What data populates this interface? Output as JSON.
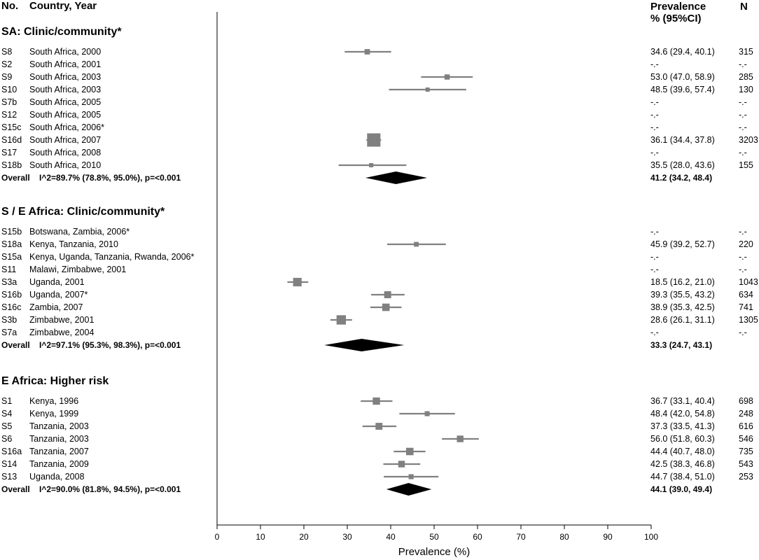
{
  "headers": {
    "no": "No.",
    "country_year": "Country, Year",
    "prevalence_line1": "Prevalence",
    "prevalence_line2": "% (95%CI)",
    "n": "N"
  },
  "chart_data": {
    "type": "forest",
    "xlabel": "Prevalence (%)",
    "xlim": [
      0,
      100
    ],
    "xticks": [
      0,
      10,
      20,
      30,
      40,
      50,
      60,
      70,
      80,
      90,
      100
    ],
    "marker_color": "#808080",
    "summary_color": "#000000",
    "groups": [
      {
        "title": "SA: Clinic/community*",
        "studies": [
          {
            "id": "S8",
            "label": "South Africa, 2000",
            "est": 34.6,
            "lo": 29.4,
            "hi": 40.1,
            "text": "34.6 (29.4, 40.1)",
            "n": "315",
            "weight": 315
          },
          {
            "id": "S2",
            "label": "South Africa, 2001",
            "est": null,
            "lo": null,
            "hi": null,
            "text": "-.-",
            "n": "-.-",
            "weight": null
          },
          {
            "id": "S9",
            "label": "South Africa, 2003",
            "est": 53.0,
            "lo": 47.0,
            "hi": 58.9,
            "text": "53.0 (47.0, 58.9)",
            "n": "285",
            "weight": 285
          },
          {
            "id": "S10",
            "label": "South Africa, 2003",
            "est": 48.5,
            "lo": 39.6,
            "hi": 57.4,
            "text": "48.5 (39.6, 57.4)",
            "n": "130",
            "weight": 130
          },
          {
            "id": "S7b",
            "label": "South Africa, 2005",
            "est": null,
            "lo": null,
            "hi": null,
            "text": "-.-",
            "n": "-.-",
            "weight": null
          },
          {
            "id": "S12",
            "label": "South Africa, 2005",
            "est": null,
            "lo": null,
            "hi": null,
            "text": "-.-",
            "n": "-.-",
            "weight": null
          },
          {
            "id": "S15c",
            "label": "South Africa, 2006*",
            "est": null,
            "lo": null,
            "hi": null,
            "text": "-.-",
            "n": "-.-",
            "weight": null
          },
          {
            "id": "S16d",
            "label": "South Africa, 2007",
            "est": 36.1,
            "lo": 34.4,
            "hi": 37.8,
            "text": "36.1 (34.4, 37.8)",
            "n": "3203",
            "weight": 3203
          },
          {
            "id": "S17",
            "label": "South Africa, 2008",
            "est": null,
            "lo": null,
            "hi": null,
            "text": "-.-",
            "n": "-.-",
            "weight": null
          },
          {
            "id": "S18b",
            "label": "South Africa, 2010",
            "est": 35.5,
            "lo": 28.0,
            "hi": 43.6,
            "text": "35.5 (28.0, 43.6)",
            "n": "155",
            "weight": 155
          }
        ],
        "overall": {
          "label": "Overall",
          "stats": "I^2=89.7% (78.8%, 95.0%), p=<0.001",
          "est": 41.2,
          "lo": 34.2,
          "hi": 48.4,
          "text": "41.2 (34.2, 48.4)"
        }
      },
      {
        "title": "S / E Africa: Clinic/community*",
        "studies": [
          {
            "id": "S15b",
            "label": "Botswana, Zambia, 2006*",
            "est": null,
            "lo": null,
            "hi": null,
            "text": "-.-",
            "n": "-.-",
            "weight": null
          },
          {
            "id": "S18a",
            "label": "Kenya, Tanzania, 2010",
            "est": 45.9,
            "lo": 39.2,
            "hi": 52.7,
            "text": "45.9 (39.2, 52.7)",
            "n": "220",
            "weight": 220
          },
          {
            "id": "S15a",
            "label": "Kenya, Uganda, Tanzania, Rwanda, 2006*",
            "est": null,
            "lo": null,
            "hi": null,
            "text": "-.-",
            "n": "-.-",
            "weight": null
          },
          {
            "id": "S11",
            "label": "Malawi, Zimbabwe, 2001",
            "est": null,
            "lo": null,
            "hi": null,
            "text": "-.-",
            "n": "-.-",
            "weight": null
          },
          {
            "id": "S3a",
            "label": "Uganda, 2001",
            "est": 18.5,
            "lo": 16.2,
            "hi": 21.0,
            "text": "18.5 (16.2, 21.0)",
            "n": "1043",
            "weight": 1043
          },
          {
            "id": "S16b",
            "label": "Uganda, 2007*",
            "est": 39.3,
            "lo": 35.5,
            "hi": 43.2,
            "text": "39.3 (35.5, 43.2)",
            "n": "634",
            "weight": 634
          },
          {
            "id": "S16c",
            "label": "Zambia, 2007",
            "est": 38.9,
            "lo": 35.3,
            "hi": 42.5,
            "text": "38.9 (35.3, 42.5)",
            "n": "741",
            "weight": 741
          },
          {
            "id": "S3b",
            "label": "Zimbabwe, 2001",
            "est": 28.6,
            "lo": 26.1,
            "hi": 31.1,
            "text": "28.6 (26.1, 31.1)",
            "n": "1305",
            "weight": 1305
          },
          {
            "id": "S7a",
            "label": "Zimbabwe, 2004",
            "est": null,
            "lo": null,
            "hi": null,
            "text": "-.-",
            "n": "-.-",
            "weight": null
          }
        ],
        "overall": {
          "label": "Overall",
          "stats": "I^2=97.1% (95.3%, 98.3%), p=<0.001",
          "est": 33.3,
          "lo": 24.7,
          "hi": 43.1,
          "text": "33.3 (24.7, 43.1)"
        }
      },
      {
        "title": "E Africa: Higher risk",
        "studies": [
          {
            "id": "S1",
            "label": "Kenya, 1996",
            "est": 36.7,
            "lo": 33.1,
            "hi": 40.4,
            "text": "36.7 (33.1, 40.4)",
            "n": "698",
            "weight": 698
          },
          {
            "id": "S4",
            "label": "Kenya, 1999",
            "est": 48.4,
            "lo": 42.0,
            "hi": 54.8,
            "text": "48.4 (42.0, 54.8)",
            "n": "248",
            "weight": 248
          },
          {
            "id": "S5",
            "label": "Tanzania, 2003",
            "est": 37.3,
            "lo": 33.5,
            "hi": 41.3,
            "text": "37.3 (33.5, 41.3)",
            "n": "616",
            "weight": 616
          },
          {
            "id": "S6",
            "label": "Tanzania, 2003",
            "est": 56.0,
            "lo": 51.8,
            "hi": 60.3,
            "text": "56.0 (51.8, 60.3)",
            "n": "546",
            "weight": 546
          },
          {
            "id": "S16a",
            "label": "Tanzania, 2007",
            "est": 44.4,
            "lo": 40.7,
            "hi": 48.0,
            "text": "44.4 (40.7, 48.0)",
            "n": "735",
            "weight": 735
          },
          {
            "id": "S14",
            "label": "Tanzania, 2009",
            "est": 42.5,
            "lo": 38.3,
            "hi": 46.8,
            "text": "42.5 (38.3, 46.8)",
            "n": "543",
            "weight": 543
          },
          {
            "id": "S13",
            "label": "Uganda, 2008",
            "est": 44.7,
            "lo": 38.4,
            "hi": 51.0,
            "text": "44.7 (38.4, 51.0)",
            "n": "253",
            "weight": 253
          }
        ],
        "overall": {
          "label": "Overall",
          "stats": "I^2=90.0% (81.8%, 94.5%), p=<0.001",
          "est": 44.1,
          "lo": 39.0,
          "hi": 49.4,
          "text": "44.1 (39.0, 49.4)"
        }
      }
    ]
  }
}
